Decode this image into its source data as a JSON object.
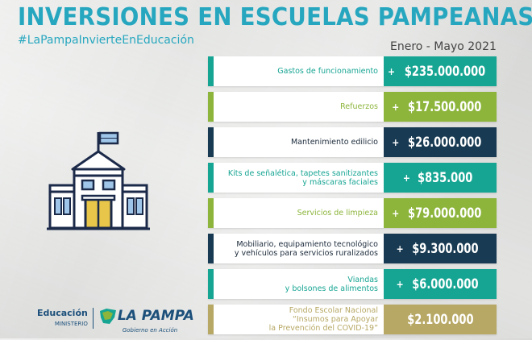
{
  "header": {
    "title": "INVERSIONES EN ESCUELAS PAMPEANAS",
    "hashtag": "#LaPampaInvierteEnEducación",
    "period": "Enero - Mayo 2021"
  },
  "colors": {
    "teal": "#17a593",
    "green": "#8db53c",
    "navy": "#183a52",
    "gold": "#b7a865",
    "title_blue": "#27a7bf"
  },
  "rows": [
    {
      "label": "Gastos de funcionamiento",
      "amount": "$235.000.000",
      "sign": "+",
      "color": "teal"
    },
    {
      "label": "Refuerzos",
      "amount": "$17.500.000",
      "sign": "+",
      "color": "green"
    },
    {
      "label": "Mantenimiento edilicio",
      "amount": "$26.000.000",
      "sign": "+",
      "color": "navy"
    },
    {
      "label": "Kits de señalética, tapetes sanitizantes\ny máscaras faciales",
      "amount": "$835.000",
      "sign": "+",
      "color": "teal"
    },
    {
      "label": "Servicios de limpieza",
      "amount": "$79.000.000",
      "sign": "+",
      "color": "green"
    },
    {
      "label": "Mobiliario, equipamiento tecnológico\ny vehículos para servicios ruralizados",
      "amount": "$9.300.000",
      "sign": "+",
      "color": "navy"
    },
    {
      "label": "Viandas\ny bolsones de alimentos",
      "amount": "$6.000.000",
      "sign": "+",
      "color": "teal"
    },
    {
      "label": "Fondo Escolar Nacional\n“Insumos para Apoyar\nla Prevención del COVID-19”",
      "amount": "$2.100.000",
      "sign": "",
      "color": "gold"
    }
  ],
  "footer": {
    "edu_title": "Educación",
    "edu_sub": "MINISTERIO",
    "brand": "LA PAMPA",
    "brand_tag": "Gobierno en Acción"
  },
  "icons": {
    "school": "school-building-icon",
    "logo": "la-pampa-logo-icon"
  }
}
